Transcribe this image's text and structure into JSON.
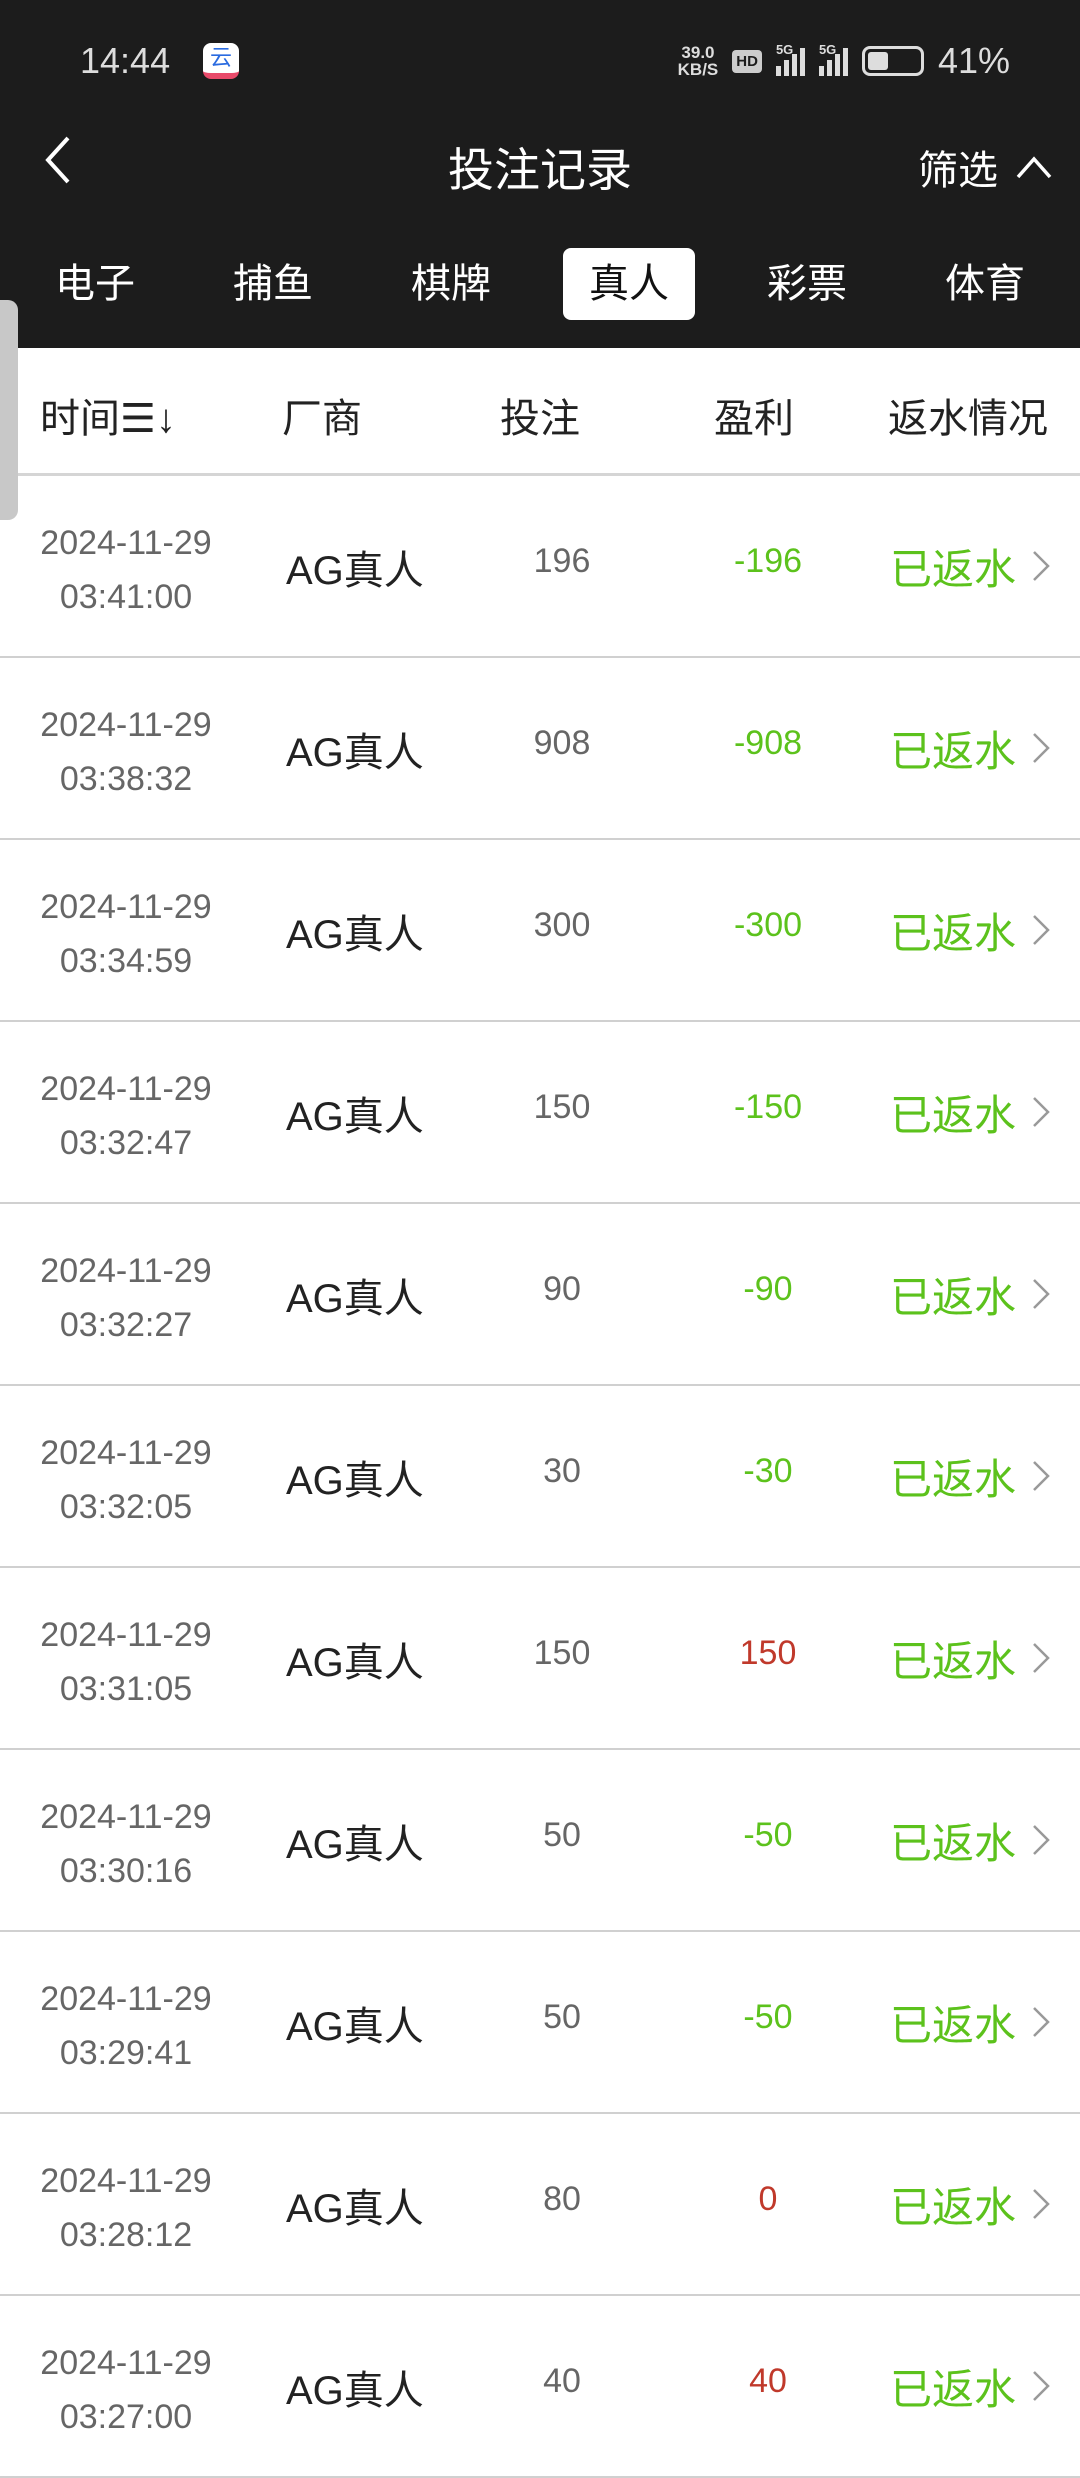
{
  "status_bar": {
    "time": "14:44",
    "net_speed": "39.0",
    "net_unit": "KB/S",
    "hd": "HD",
    "sig1": "5G",
    "sig2": "5G",
    "battery": "41%",
    "battery_level": 0.41
  },
  "header": {
    "title": "投注记录",
    "filter": "筛选"
  },
  "tabs": [
    {
      "label": "电子"
    },
    {
      "label": "捕鱼"
    },
    {
      "label": "棋牌"
    },
    {
      "label": "真人",
      "active": true
    },
    {
      "label": "彩票"
    },
    {
      "label": "体育"
    }
  ],
  "columns": {
    "time": "时间",
    "vendor": "厂商",
    "bet": "投注",
    "profit": "盈利",
    "rebate": "返水情况"
  },
  "colors": {
    "loss": "#5cc21c",
    "win": "#c0392b",
    "rebate": "#5cc21c"
  },
  "rows": [
    {
      "date": "2024-11-29",
      "time": "03:41:00",
      "vendor": "AG真人",
      "bet": "196",
      "profit": "-196",
      "status": "已返水"
    },
    {
      "date": "2024-11-29",
      "time": "03:38:32",
      "vendor": "AG真人",
      "bet": "908",
      "profit": "-908",
      "status": "已返水"
    },
    {
      "date": "2024-11-29",
      "time": "03:34:59",
      "vendor": "AG真人",
      "bet": "300",
      "profit": "-300",
      "status": "已返水"
    },
    {
      "date": "2024-11-29",
      "time": "03:32:47",
      "vendor": "AG真人",
      "bet": "150",
      "profit": "-150",
      "status": "已返水"
    },
    {
      "date": "2024-11-29",
      "time": "03:32:27",
      "vendor": "AG真人",
      "bet": "90",
      "profit": "-90",
      "status": "已返水"
    },
    {
      "date": "2024-11-29",
      "time": "03:32:05",
      "vendor": "AG真人",
      "bet": "30",
      "profit": "-30",
      "status": "已返水"
    },
    {
      "date": "2024-11-29",
      "time": "03:31:05",
      "vendor": "AG真人",
      "bet": "150",
      "profit": "150",
      "status": "已返水"
    },
    {
      "date": "2024-11-29",
      "time": "03:30:16",
      "vendor": "AG真人",
      "bet": "50",
      "profit": "-50",
      "status": "已返水"
    },
    {
      "date": "2024-11-29",
      "time": "03:29:41",
      "vendor": "AG真人",
      "bet": "50",
      "profit": "-50",
      "status": "已返水"
    },
    {
      "date": "2024-11-29",
      "time": "03:28:12",
      "vendor": "AG真人",
      "bet": "80",
      "profit": "0",
      "status": "已返水"
    },
    {
      "date": "2024-11-29",
      "time": "03:27:00",
      "vendor": "AG真人",
      "bet": "40",
      "profit": "40",
      "status": "已返水"
    }
  ]
}
